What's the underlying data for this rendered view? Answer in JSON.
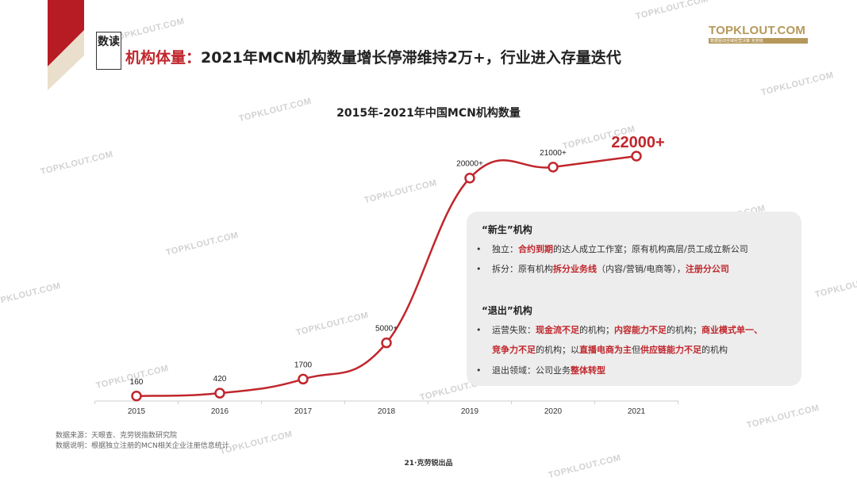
{
  "brand": {
    "logo_text": "TOPKLOUT.COM",
    "logo_sub": "数据驱动全域经营决策 克劳锐",
    "watermark": "TOPKLOUT.COM",
    "accent_color": "#c0272d",
    "gold_color": "#b5985a"
  },
  "header": {
    "tag": "数读",
    "title_keyword": "机构体量：",
    "title_rest": "2021年MCN机构数量增长停滞维持2万+，行业进入存量迭代"
  },
  "chart_data": {
    "type": "line",
    "title": "2015年-2021年中国MCN机构数量",
    "categories": [
      "2015",
      "2016",
      "2017",
      "2018",
      "2019",
      "2020",
      "2021"
    ],
    "values": [
      160,
      420,
      1700,
      5000,
      20000,
      21000,
      22000
    ],
    "data_labels": [
      "160",
      "420",
      "1700",
      "5000+",
      "20000+",
      "21000+",
      "22000+"
    ],
    "highlight_last": true,
    "line_color": "#c0272d",
    "ylim": [
      0,
      22000
    ],
    "grid": false
  },
  "panel": {
    "new_heading": "“新生”机构",
    "new_items": [
      [
        {
          "t": "独立："
        },
        {
          "t": "合约到期",
          "hl": true
        },
        {
          "t": "的达人成立工作室；原有机构高层/员工成立新公司"
        }
      ],
      [
        {
          "t": "拆分：原有机构"
        },
        {
          "t": "拆分业务线",
          "hl": true
        },
        {
          "t": "（内容/营销/电商等），"
        },
        {
          "t": "注册分公司",
          "hl": true
        }
      ]
    ],
    "exit_heading": "“退出”机构",
    "exit_items": [
      [
        {
          "t": "运营失败："
        },
        {
          "t": "现金流不足",
          "hl": true
        },
        {
          "t": "的机构；"
        },
        {
          "t": "内容能力不足",
          "hl": true
        },
        {
          "t": "的机构；"
        },
        {
          "t": "商业模式单一、",
          "hl": true
        }
      ],
      [
        {
          "t": "竞争力不足",
          "hl": true
        },
        {
          "t": "的机构；以"
        },
        {
          "t": "直播电商为主",
          "hl": true
        },
        {
          "t": "但"
        },
        {
          "t": "供应链能力不足",
          "hl": true
        },
        {
          "t": "的机构"
        }
      ],
      [
        {
          "t": "退出领域：公司业务"
        },
        {
          "t": "整体转型",
          "hl": true
        }
      ]
    ]
  },
  "footer": {
    "source": "数据来源：天眼查、克劳锐指数研究院",
    "note": "数据说明：根据独立注册的MCN相关企业注册信息统计",
    "page": "21·克劳锐出品"
  }
}
